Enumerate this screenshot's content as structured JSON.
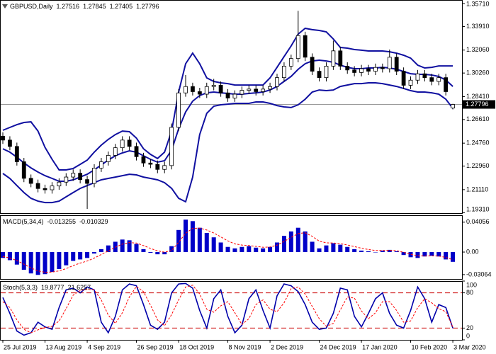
{
  "chart_data": [
    {
      "type": "candlestick",
      "title": "GBPUSD,Daily",
      "categories": [
        "25 Jul 2019",
        null,
        null,
        null,
        null,
        null,
        "13 Aug 2019",
        null,
        null,
        null,
        null,
        null,
        "4 Sep 2019",
        null,
        null,
        null,
        null,
        null,
        null,
        "26 Sep 2019",
        null,
        null,
        null,
        null,
        null,
        "18 Oct 2019",
        null,
        null,
        null,
        null,
        null,
        null,
        "8 Nov 2019",
        null,
        null,
        null,
        null,
        null,
        "2 Dec 2019",
        null,
        null,
        null,
        null,
        null,
        null,
        "24 Dec 2019",
        null,
        null,
        null,
        null,
        null,
        "17 Jan 2020",
        null,
        null,
        null,
        null,
        null,
        null,
        "10 Feb 2020",
        null,
        null,
        null,
        null,
        null,
        "3 Mar 2020"
      ],
      "open": [
        1.253,
        1.25,
        1.245,
        1.233,
        1.22,
        1.216,
        1.212,
        1.211,
        1.214,
        1.217,
        1.221,
        1.224,
        1.219,
        1.216,
        1.228,
        1.233,
        1.238,
        1.244,
        1.25,
        1.245,
        1.237,
        1.232,
        1.231,
        1.227,
        1.23,
        1.26,
        1.287,
        1.292,
        1.288,
        1.286,
        1.292,
        1.293,
        1.287,
        1.283,
        1.286,
        1.289,
        1.29,
        1.288,
        1.29,
        1.292,
        1.299,
        1.308,
        1.314,
        1.332,
        1.315,
        1.304,
        1.299,
        1.308,
        1.32,
        1.308,
        1.305,
        1.303,
        1.306,
        1.304,
        1.307,
        1.306,
        1.315,
        1.304,
        1.293,
        1.297,
        1.302,
        1.299,
        1.296,
        1.299,
        1.27516
      ],
      "high": [
        1.256,
        1.253,
        1.248,
        1.236,
        1.223,
        1.219,
        1.215,
        1.217,
        1.22,
        1.224,
        1.227,
        1.227,
        1.222,
        1.231,
        1.236,
        1.241,
        1.247,
        1.253,
        1.253,
        1.248,
        1.24,
        1.235,
        1.234,
        1.233,
        1.263,
        1.29,
        1.301,
        1.295,
        1.291,
        1.295,
        1.298,
        1.296,
        1.29,
        1.289,
        1.292,
        1.293,
        1.293,
        1.293,
        1.295,
        1.302,
        1.311,
        1.317,
        1.3514,
        1.335,
        1.318,
        1.307,
        1.311,
        1.328,
        1.323,
        1.311,
        1.308,
        1.309,
        1.309,
        1.31,
        1.31,
        1.321,
        1.318,
        1.307,
        1.3,
        1.305,
        1.305,
        1.302,
        1.302,
        1.302,
        1.27845
      ],
      "low": [
        1.247,
        1.242,
        1.23,
        1.217,
        1.213,
        1.209,
        1.208,
        1.208,
        1.211,
        1.214,
        1.218,
        1.216,
        1.196,
        1.213,
        1.225,
        1.23,
        1.235,
        1.241,
        1.242,
        1.234,
        1.229,
        1.228,
        1.224,
        1.224,
        1.227,
        1.257,
        1.284,
        1.285,
        1.283,
        1.283,
        1.289,
        1.284,
        1.28,
        1.28,
        1.283,
        1.286,
        1.285,
        1.285,
        1.287,
        1.289,
        1.296,
        1.305,
        1.311,
        1.312,
        1.301,
        1.296,
        1.296,
        1.305,
        1.305,
        1.302,
        1.3,
        1.3,
        1.301,
        1.301,
        1.303,
        1.303,
        1.301,
        1.29,
        1.29,
        1.294,
        1.296,
        1.293,
        1.293,
        1.285,
        1.27405
      ],
      "close": [
        1.25,
        1.245,
        1.233,
        1.22,
        1.216,
        1.212,
        1.211,
        1.214,
        1.217,
        1.221,
        1.224,
        1.219,
        1.216,
        1.228,
        1.233,
        1.238,
        1.244,
        1.25,
        1.245,
        1.237,
        1.232,
        1.231,
        1.227,
        1.23,
        1.26,
        1.287,
        1.292,
        1.288,
        1.286,
        1.292,
        1.293,
        1.287,
        1.283,
        1.286,
        1.289,
        1.29,
        1.288,
        1.29,
        1.292,
        1.299,
        1.308,
        1.314,
        1.332,
        1.315,
        1.304,
        1.299,
        1.308,
        1.32,
        1.308,
        1.305,
        1.303,
        1.306,
        1.304,
        1.307,
        1.306,
        1.315,
        1.304,
        1.293,
        1.297,
        1.302,
        1.299,
        1.296,
        1.299,
        1.288,
        1.27796
      ],
      "up_color": "#ffffff",
      "down_color": "#000000",
      "series": [
        {
          "color": "#1010a0",
          "values": [
            1.2577,
            1.2599,
            1.2621,
            1.2638,
            1.2643,
            1.2571,
            1.2443,
            1.2349,
            1.2266,
            1.2266,
            1.2277,
            1.231,
            1.2343,
            1.2405,
            1.246,
            1.2505,
            1.2543,
            1.2571,
            1.2566,
            1.2516,
            1.2432,
            1.2388,
            1.2355,
            1.2405,
            1.2571,
            1.2877,
            1.3099,
            1.3182,
            1.3099,
            1.2988,
            1.296,
            1.2949,
            1.2943,
            1.2932,
            1.2932,
            1.2932,
            1.2932,
            1.2932,
            1.2988,
            1.3071,
            1.3155,
            1.3238,
            1.3332,
            1.3377,
            1.3366,
            1.336,
            1.3349,
            1.3293,
            1.3227,
            1.3221,
            1.321,
            1.3205,
            1.3199,
            1.3199,
            1.3199,
            1.3193,
            1.3182,
            1.3166,
            1.3143,
            1.3088,
            1.3066,
            1.3071,
            1.3082,
            1.3082,
            1.3082
          ]
        },
        {
          "color": "#1010a0",
          "values": [
            1.2432,
            1.2405,
            1.2366,
            1.2321,
            1.2282,
            1.2249,
            1.2221,
            1.2199,
            1.2177,
            1.2177,
            1.2188,
            1.221,
            1.2232,
            1.2266,
            1.2305,
            1.2343,
            1.2377,
            1.2399,
            1.2416,
            1.2405,
            1.2377,
            1.2349,
            1.2327,
            1.2338,
            1.2421,
            1.2588,
            1.2721,
            1.2805,
            1.2849,
            1.2871,
            1.2877,
            1.2871,
            1.2866,
            1.286,
            1.286,
            1.2866,
            1.2871,
            1.2877,
            1.2893,
            1.2921,
            1.296,
            1.2999,
            1.3055,
            1.3099,
            1.3121,
            1.3127,
            1.3121,
            1.311,
            1.3088,
            1.3071,
            1.306,
            1.306,
            1.3066,
            1.3066,
            1.3071,
            1.3066,
            1.3055,
            1.3038,
            1.3021,
            1.3016,
            1.3016,
            1.301,
            1.2999,
            1.2971,
            1.2921
          ]
        },
        {
          "color": "#1010a0",
          "values": [
            1.2238,
            1.2199,
            1.2143,
            1.2088,
            1.2043,
            1.2021,
            1.201,
            1.201,
            1.2021,
            1.2055,
            1.2088,
            1.2121,
            1.2143,
            1.2166,
            1.2188,
            1.2199,
            1.221,
            1.2221,
            1.2232,
            1.2227,
            1.221,
            1.2199,
            1.2188,
            1.2166,
            1.2121,
            1.2043,
            1.2016,
            1.221,
            1.2543,
            1.271,
            1.2766,
            1.2777,
            1.2782,
            1.2788,
            1.2788,
            1.2788,
            1.2799,
            1.2799,
            1.2788,
            1.2771,
            1.276,
            1.2755,
            1.2777,
            1.2821,
            1.2877,
            1.2893,
            1.2888,
            1.2893,
            1.2921,
            1.2932,
            1.2943,
            1.2943,
            1.2949,
            1.2949,
            1.2943,
            1.2932,
            1.2921,
            1.2905,
            1.2888,
            1.2877,
            1.2877,
            1.2871,
            1.286,
            1.2821,
            1.2749
          ]
        }
      ],
      "ylim": [
        1.1927,
        1.3599
      ],
      "yticks": [
        {
          "value": 1.3571,
          "label": "1.35710"
        },
        {
          "value": 1.3391,
          "label": "1.33910"
        },
        {
          "value": 1.3206,
          "label": "1.32060"
        },
        {
          "value": 1.3026,
          "label": "1.30260"
        },
        {
          "value": 1.2841,
          "label": "1.28410"
        },
        {
          "value": 1.2661,
          "label": "1.26610"
        },
        {
          "value": 1.2476,
          "label": "1.24760"
        },
        {
          "value": 1.2296,
          "label": "1.22960"
        },
        {
          "value": 1.2111,
          "label": "1.21110"
        },
        {
          "value": 1.1931,
          "label": "1.19310"
        }
      ],
      "grid": false
    },
    {
      "type": "bar",
      "title": "MACD(5,34,4)",
      "series": [
        {
          "mark": "bar",
          "color": "#0000c8",
          "values": [
            -0.008,
            -0.011,
            -0.017,
            -0.024,
            -0.029,
            -0.031,
            -0.03,
            -0.027,
            -0.023,
            -0.018,
            -0.012,
            -0.01,
            -0.008,
            -0.002,
            0.004,
            0.009,
            0.014,
            0.017,
            0.016,
            0.011,
            0.004,
            -0.001,
            -0.003,
            -0.003,
            0.008,
            0.03,
            0.044,
            0.042,
            0.033,
            0.026,
            0.02,
            0.013,
            0.007,
            0.005,
            0.007,
            0.008,
            0.006,
            0.005,
            0.007,
            0.013,
            0.022,
            0.028,
            0.033,
            0.028,
            0.014,
            0.005,
            0.009,
            0.012,
            0.01,
            0.007,
            0.004,
            0.002,
            0.001,
            0.0,
            0.002,
            0.003,
            0.001,
            -0.004,
            -0.007,
            -0.008,
            -0.006,
            -0.005,
            -0.006,
            -0.01,
            -0.013255
          ]
        },
        {
          "mark": "line",
          "style": "dashed",
          "color": "#ff0000",
          "values": [
            -0.006,
            -0.008,
            -0.0115,
            -0.0165,
            -0.0215,
            -0.0255,
            -0.0275,
            -0.0272,
            -0.0255,
            -0.0225,
            -0.0183,
            -0.015,
            -0.0122,
            -0.0081,
            -0.0033,
            0.0016,
            0.0066,
            0.0108,
            0.0129,
            0.0122,
            0.0089,
            0.0049,
            0.0017,
            -0.0002,
            0.0021,
            0.0133,
            0.0256,
            0.0322,
            0.0325,
            0.0299,
            0.0259,
            0.0207,
            0.0152,
            0.0111,
            0.0095,
            0.0089,
            0.0077,
            0.0066,
            0.0068,
            0.0093,
            0.0144,
            0.0198,
            0.0251,
            0.0263,
            0.0214,
            0.0148,
            0.0125,
            0.0123,
            0.0114,
            0.0096,
            0.0074,
            0.0052,
            0.0035,
            0.0021,
            0.0021,
            0.0024,
            0.0019,
            -0.0004,
            -0.003,
            -0.005,
            -0.0054,
            -0.0052,
            -0.0055,
            -0.0073,
            -0.010329
          ]
        }
      ],
      "ylim": [
        -0.0365,
        0.05
      ],
      "yticks": [
        0.04056,
        {
          "value": 0,
          "label": "0.00"
        },
        -0.03064
      ],
      "grid": false
    },
    {
      "type": "line",
      "title": "Stoch(5,3,3)",
      "series": [
        {
          "color": "#0000aa",
          "values": [
            72,
            45,
            15,
            8,
            12,
            30,
            22,
            18,
            55,
            85,
            88,
            80,
            90,
            85,
            30,
            12,
            40,
            85,
            95,
            92,
            60,
            25,
            18,
            30,
            80,
            95,
            96,
            88,
            50,
            20,
            70,
            85,
            40,
            12,
            25,
            70,
            85,
            50,
            20,
            75,
            95,
            92,
            82,
            60,
            30,
            18,
            20,
            45,
            88,
            85,
            40,
            22,
            45,
            70,
            80,
            45,
            25,
            20,
            50,
            90,
            70,
            30,
            60,
            55,
            19.8777
          ]
        },
        {
          "style": "dashed",
          "color": "#ff0000",
          "values": [
            65,
            55,
            34,
            18,
            12,
            17,
            21,
            23,
            32,
            53,
            76,
            84,
            86,
            85,
            68,
            42,
            28,
            46,
            73,
            91,
            82,
            59,
            34,
            24,
            43,
            68,
            90,
            93,
            78,
            52,
            47,
            58,
            65,
            46,
            26,
            36,
            60,
            68,
            52,
            48,
            63,
            87,
            90,
            78,
            57,
            36,
            23,
            28,
            51,
            73,
            71,
            49,
            36,
            46,
            65,
            65,
            50,
            30,
            32,
            55,
            70,
            63,
            53,
            48,
            21.6257
          ]
        }
      ],
      "ylim": [
        0,
        100
      ],
      "yticks": [
        100,
        80,
        20,
        0
      ],
      "grid": true,
      "grid_color": "#cc0000"
    }
  ]
}
